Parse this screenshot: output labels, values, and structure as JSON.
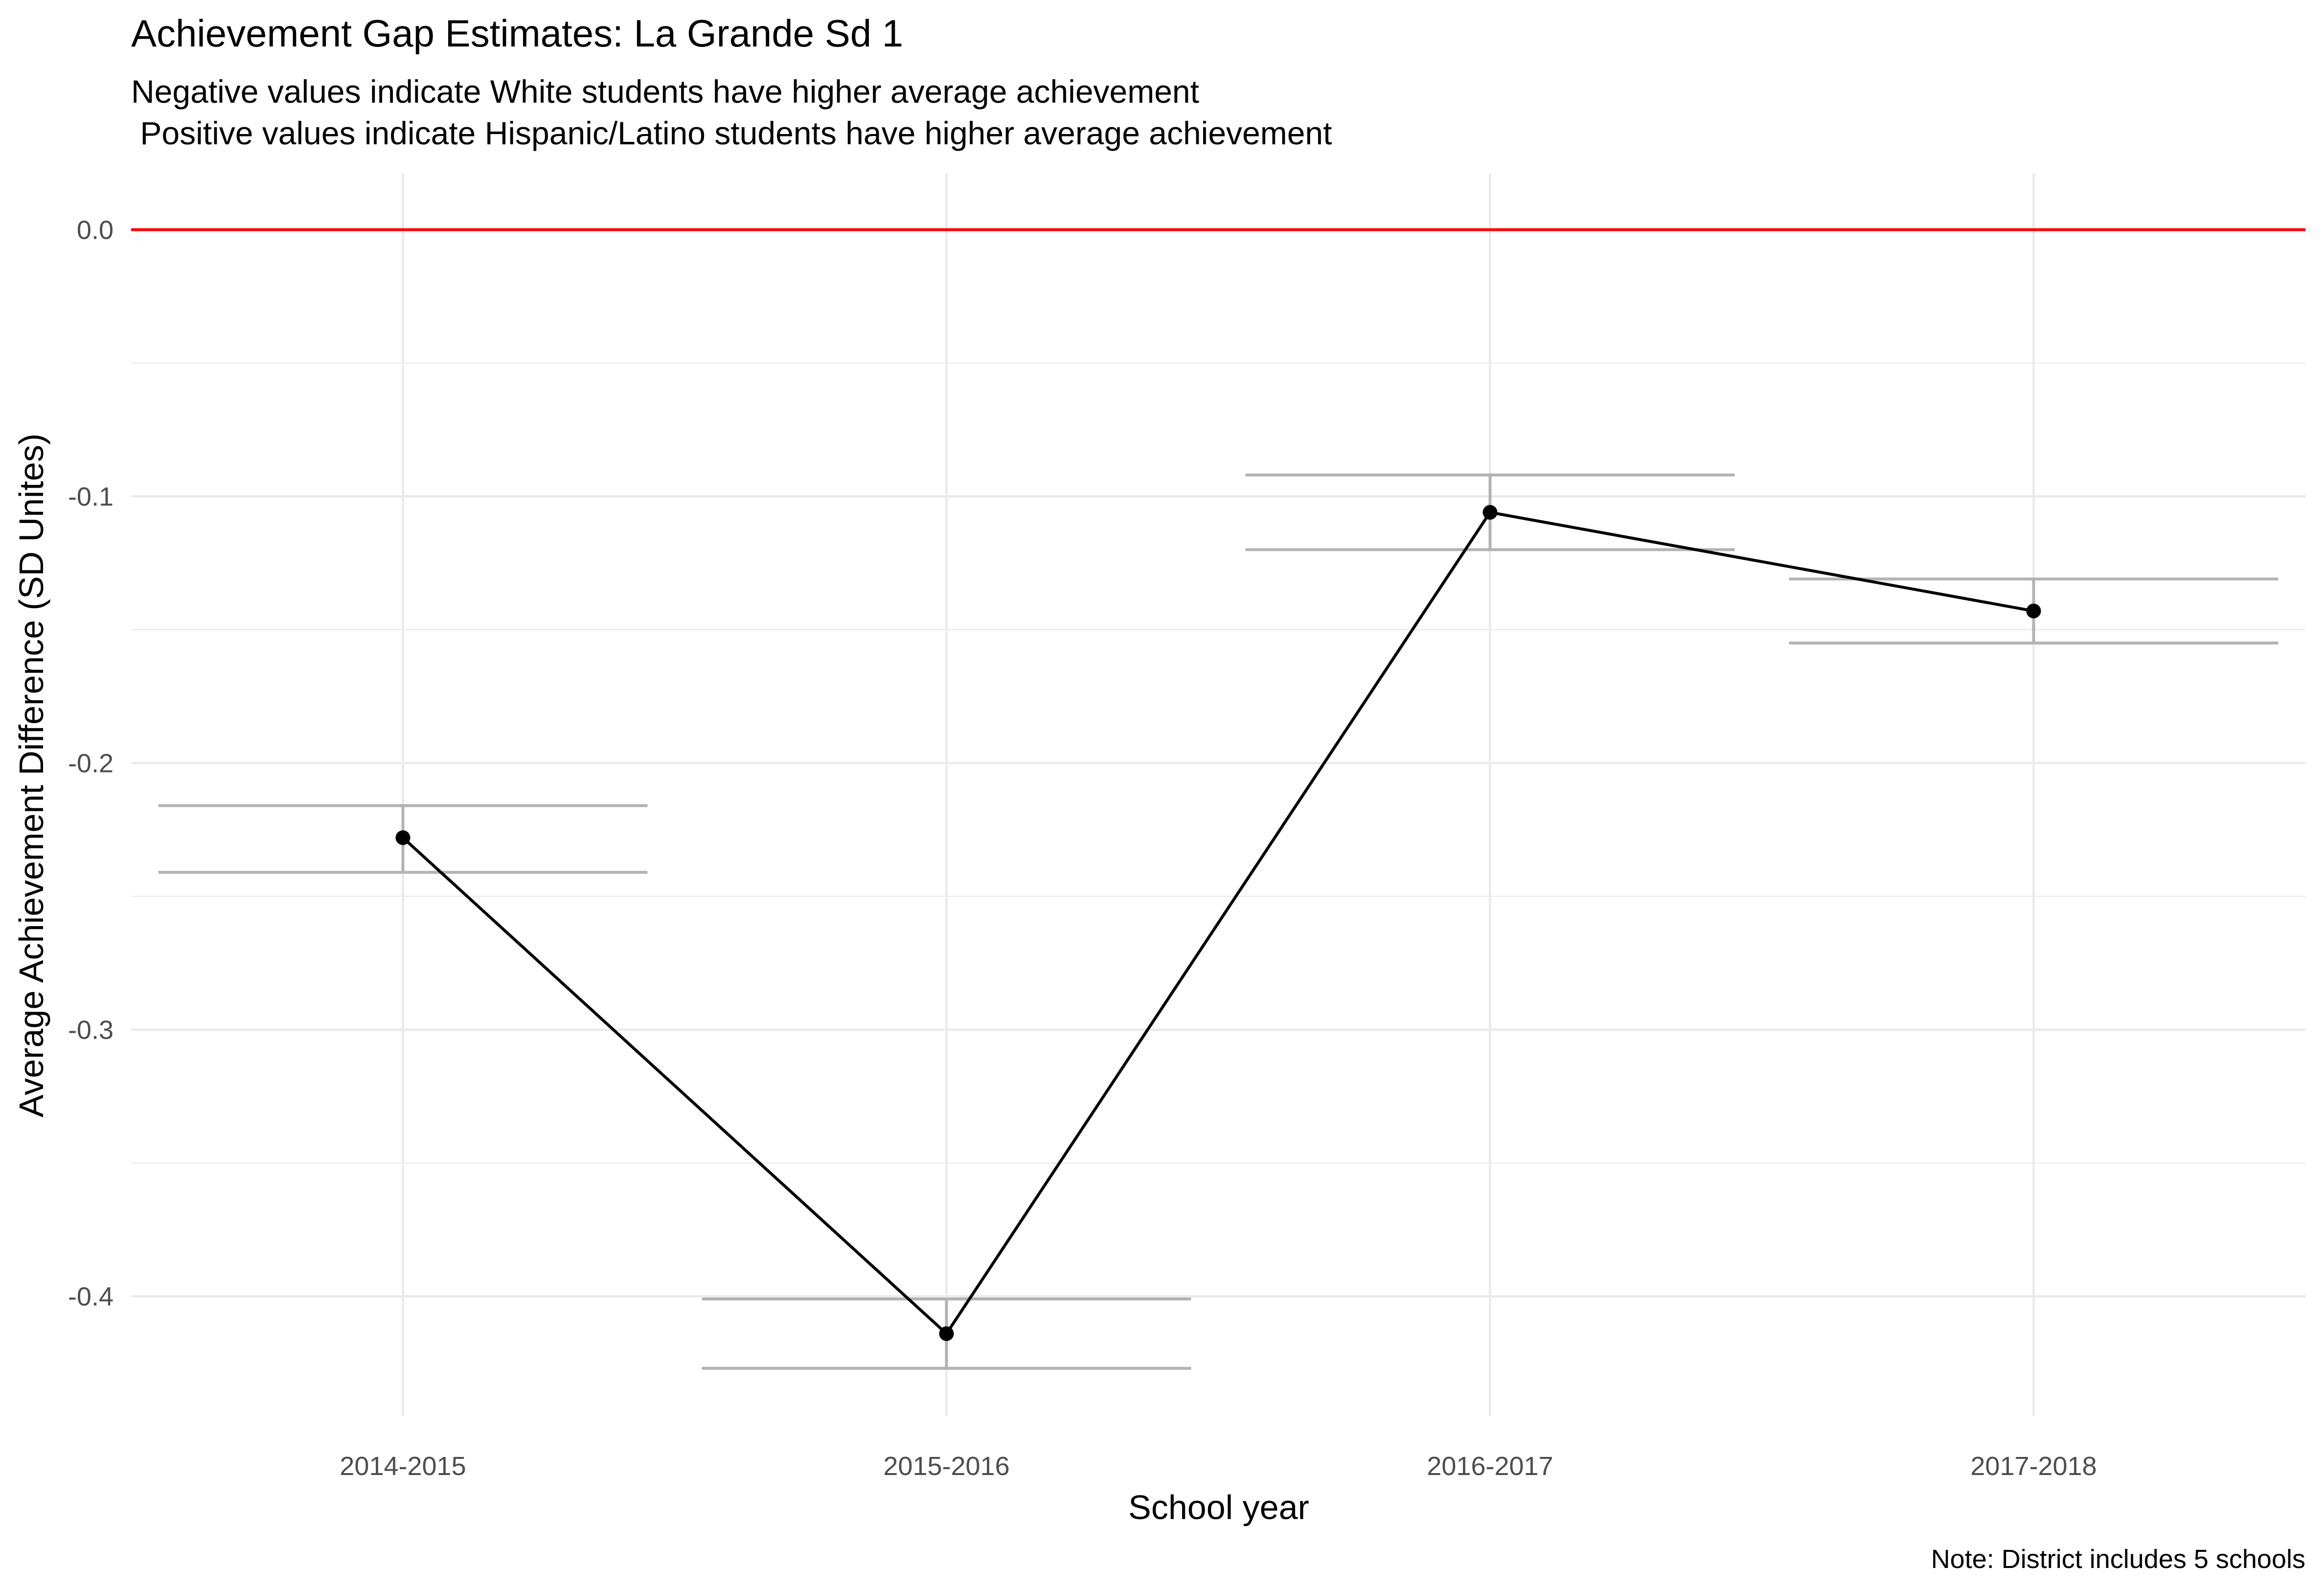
{
  "chart_data": {
    "type": "line",
    "title": "Achievement Gap Estimates: La Grande Sd 1",
    "subtitle_lines": [
      "Negative values indicate White students have higher average achievement",
      " Positive values indicate Hispanic/Latino students have higher average achievement"
    ],
    "xlabel": "School year",
    "ylabel": "Average Achievement Difference (SD Unites)",
    "caption": "Note: District includes 5 schools",
    "categories": [
      "2014-2015",
      "2015-2016",
      "2016-2017",
      "2017-2018"
    ],
    "values": [
      -0.228,
      -0.414,
      -0.106,
      -0.143
    ],
    "error_lower": [
      -0.241,
      -0.427,
      -0.12,
      -0.155
    ],
    "error_upper": [
      -0.216,
      -0.401,
      -0.092,
      -0.131
    ],
    "reference_line": {
      "y": 0.0,
      "color": "#ff0000"
    },
    "yticks": [
      0.0,
      -0.1,
      -0.2,
      -0.3,
      -0.4
    ],
    "ytick_labels": [
      "0.0",
      "-0.1",
      "-0.2",
      "-0.3",
      "-0.4"
    ],
    "ylim": [
      -0.445,
      0.021
    ],
    "grid": true,
    "colors": {
      "line": "#000000",
      "error_bar": "#b3b3b3",
      "reference": "#ff0000",
      "grid": "#ebebeb"
    }
  }
}
